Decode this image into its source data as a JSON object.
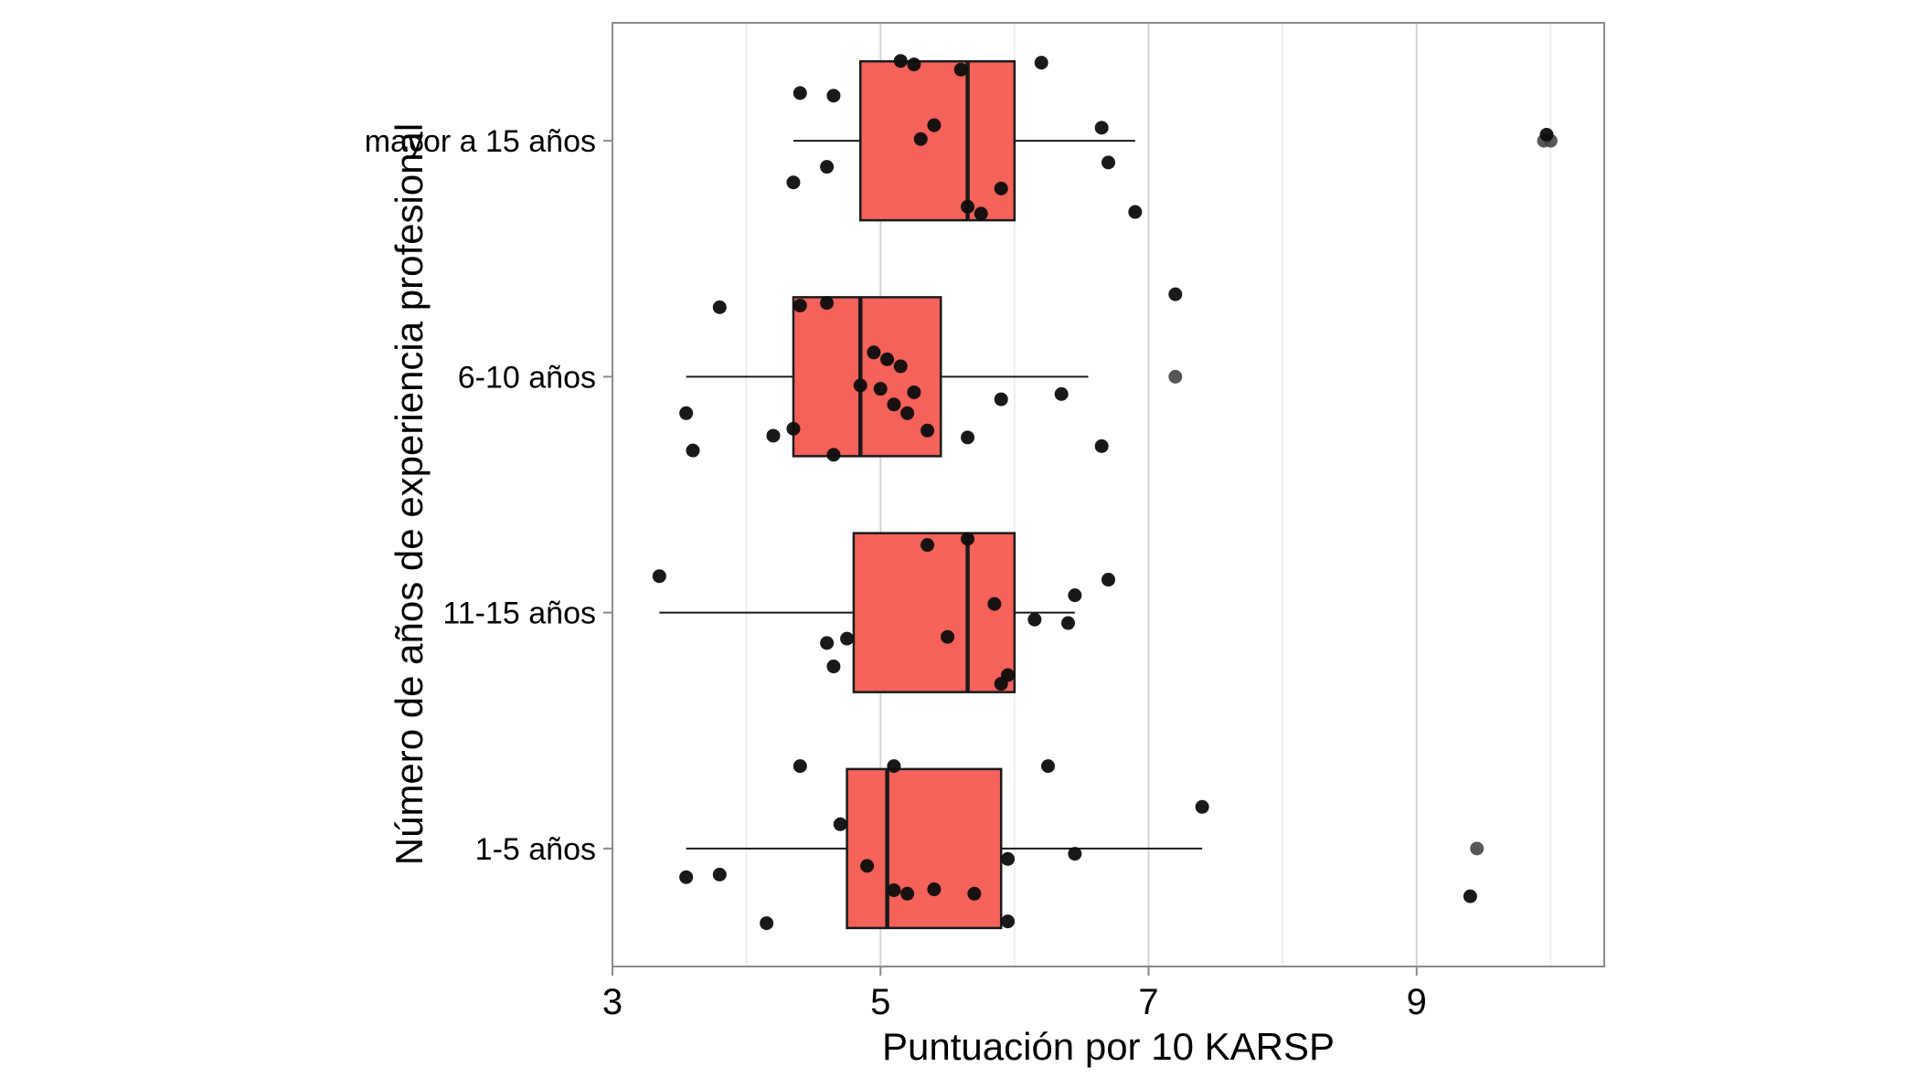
{
  "chart_data": {
    "type": "boxplot",
    "orientation": "horizontal",
    "title": "",
    "xlabel": "Puntuación por 10 KARSP",
    "ylabel": "Número de años de experiencia profesional",
    "xlim": [
      3.0,
      10.4
    ],
    "x_major_ticks": [
      3,
      5,
      7,
      9
    ],
    "x_minor_ticks": [
      4,
      6,
      8,
      10
    ],
    "grid": true,
    "legend": false,
    "box_fill": "#f4625a",
    "box_stroke": "#1a1a1a",
    "point_color": "#0d0d0d",
    "outlier_color": "#454545",
    "grid_major_color": "#d4d4d4",
    "grid_minor_color": "#eaeaea",
    "panel_border_color": "#8a8a8a",
    "groups": [
      {
        "label": "mayor a 15 años",
        "whisker_min": 4.35,
        "q1": 4.85,
        "median": 5.65,
        "q3": 6.0,
        "whisker_max": 6.9,
        "outliers": [
          9.95,
          10.0
        ],
        "points": [
          [
            4.4,
            -0.55
          ],
          [
            4.65,
            -0.52
          ],
          [
            4.35,
            0.48
          ],
          [
            4.6,
            0.3
          ],
          [
            5.15,
            -0.92
          ],
          [
            5.25,
            -0.88
          ],
          [
            5.3,
            -0.02
          ],
          [
            5.4,
            -0.18
          ],
          [
            5.6,
            -0.82
          ],
          [
            5.65,
            0.76
          ],
          [
            5.75,
            0.84
          ],
          [
            5.9,
            0.55
          ],
          [
            6.2,
            -0.9
          ],
          [
            6.65,
            -0.15
          ],
          [
            6.7,
            0.25
          ],
          [
            6.9,
            0.82
          ],
          [
            9.97,
            -0.07
          ]
        ]
      },
      {
        "label": "6-10 años",
        "whisker_min": 3.55,
        "q1": 4.35,
        "median": 4.85,
        "q3": 5.45,
        "whisker_max": 6.55,
        "outliers": [
          7.2
        ],
        "points": [
          [
            3.8,
            -0.8
          ],
          [
            3.55,
            0.42
          ],
          [
            3.6,
            0.85
          ],
          [
            4.2,
            0.68
          ],
          [
            4.35,
            0.6
          ],
          [
            4.4,
            -0.82
          ],
          [
            4.6,
            -0.85
          ],
          [
            4.65,
            0.9
          ],
          [
            4.85,
            0.1
          ],
          [
            4.95,
            -0.28
          ],
          [
            5.0,
            0.14
          ],
          [
            5.05,
            -0.2
          ],
          [
            5.1,
            0.32
          ],
          [
            5.15,
            -0.12
          ],
          [
            5.2,
            0.42
          ],
          [
            5.25,
            0.18
          ],
          [
            5.35,
            0.62
          ],
          [
            5.65,
            0.7
          ],
          [
            5.9,
            0.26
          ],
          [
            6.35,
            0.2
          ],
          [
            6.65,
            0.8
          ],
          [
            7.2,
            -0.95
          ]
        ]
      },
      {
        "label": "11-15 años",
        "whisker_min": 3.35,
        "q1": 4.8,
        "median": 5.65,
        "q3": 6.0,
        "whisker_max": 6.45,
        "outliers": [],
        "points": [
          [
            3.35,
            -0.42
          ],
          [
            4.6,
            0.35
          ],
          [
            4.65,
            0.62
          ],
          [
            4.75,
            0.3
          ],
          [
            5.35,
            -0.78
          ],
          [
            5.5,
            0.28
          ],
          [
            5.65,
            -0.85
          ],
          [
            5.85,
            -0.1
          ],
          [
            5.9,
            0.82
          ],
          [
            5.95,
            0.72
          ],
          [
            6.15,
            0.08
          ],
          [
            6.4,
            0.12
          ],
          [
            6.45,
            -0.2
          ],
          [
            6.7,
            -0.38
          ]
        ]
      },
      {
        "label": "1-5 años",
        "whisker_min": 3.55,
        "q1": 4.75,
        "median": 5.05,
        "q3": 5.9,
        "whisker_max": 7.4,
        "outliers": [
          9.45
        ],
        "points": [
          [
            4.4,
            -0.95
          ],
          [
            4.7,
            -0.28
          ],
          [
            5.1,
            -0.95
          ],
          [
            6.25,
            -0.95
          ],
          [
            3.55,
            0.33
          ],
          [
            3.8,
            0.3
          ],
          [
            4.15,
            0.86
          ],
          [
            4.9,
            0.2
          ],
          [
            5.1,
            0.48
          ],
          [
            5.2,
            0.52
          ],
          [
            5.4,
            0.47
          ],
          [
            5.7,
            0.52
          ],
          [
            5.95,
            0.12
          ],
          [
            5.95,
            0.84
          ],
          [
            6.45,
            0.06
          ],
          [
            7.4,
            -0.48
          ],
          [
            9.4,
            0.55
          ]
        ]
      }
    ]
  }
}
